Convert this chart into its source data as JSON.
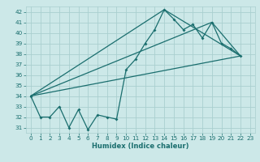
{
  "xlabel": "Humidex (Indice chaleur)",
  "bg_color": "#cce8e8",
  "grid_color": "#aacfcf",
  "line_color": "#1a6e6e",
  "xlim": [
    -0.5,
    23.5
  ],
  "ylim": [
    30.5,
    42.5
  ],
  "xticks": [
    0,
    1,
    2,
    3,
    4,
    5,
    6,
    7,
    8,
    9,
    10,
    11,
    12,
    13,
    14,
    15,
    16,
    17,
    18,
    19,
    20,
    21,
    22,
    23
  ],
  "yticks": [
    31,
    32,
    33,
    34,
    35,
    36,
    37,
    38,
    39,
    40,
    41,
    42
  ],
  "line1_x": [
    0,
    1,
    2,
    3,
    4,
    5,
    6,
    7,
    8,
    9,
    10,
    11,
    12,
    13,
    14,
    15,
    16,
    17,
    18,
    19,
    20,
    21,
    22
  ],
  "line1_y": [
    34,
    32,
    32,
    33,
    31,
    32.7,
    30.8,
    32.2,
    32,
    31.8,
    36.5,
    37.5,
    39,
    40.3,
    42.2,
    41.3,
    40.3,
    40.8,
    39.5,
    41,
    39,
    38.5,
    37.8
  ],
  "line2_x": [
    0,
    22
  ],
  "line2_y": [
    34,
    37.8
  ],
  "line3_x": [
    0,
    14,
    22
  ],
  "line3_y": [
    34,
    42.2,
    37.8
  ],
  "line4_x": [
    0,
    19,
    22
  ],
  "line4_y": [
    34,
    41.0,
    37.8
  ],
  "xlabel_fontsize": 6.0,
  "tick_fontsize": 5.2
}
